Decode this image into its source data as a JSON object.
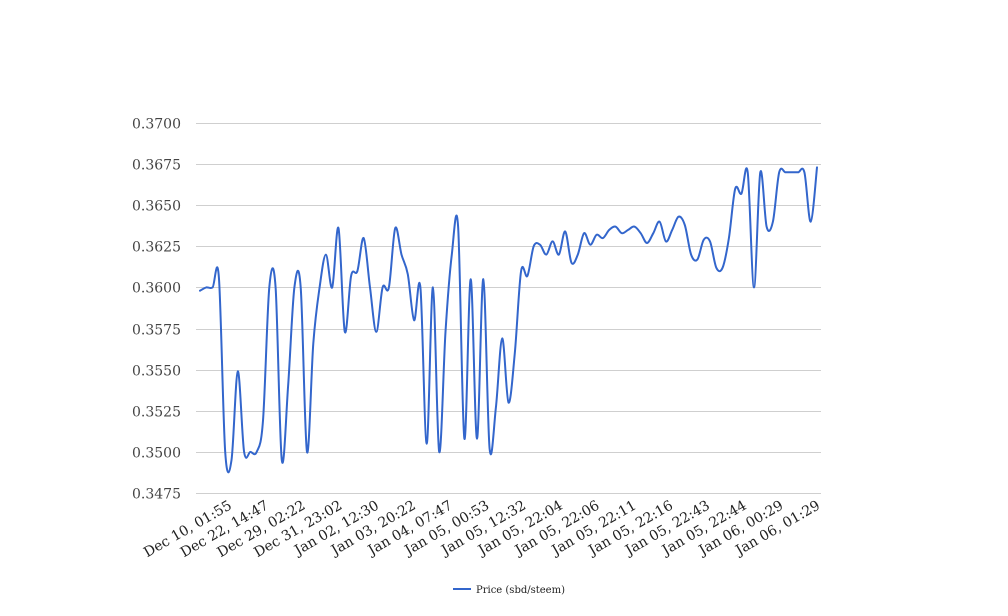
{
  "chart_data": {
    "type": "line",
    "title": "",
    "xlabel": "",
    "ylabel": "",
    "grid": true,
    "legend_position": "bottom",
    "ylim": [
      0.3475,
      0.37
    ],
    "y_ticks": [
      "0.3475",
      "0.3500",
      "0.3525",
      "0.3550",
      "0.3575",
      "0.3600",
      "0.3625",
      "0.3650",
      "0.3675",
      "0.3700"
    ],
    "x_tick_labels": [
      "Dec 10, 01:55",
      "Dec 22, 14:47",
      "Dec 29, 02:22",
      "Dec 31, 23:02",
      "Jan 02, 12:30",
      "Jan 03, 20:22",
      "Jan 04, 07:47",
      "Jan 05, 00:53",
      "Jan 05, 12:32",
      "Jan 05, 22:04",
      "Jan 05, 22:06",
      "Jan 05, 22:11",
      "Jan 05, 22:16",
      "Jan 05, 22:43",
      "Jan 05, 22:44",
      "Jan 06, 00:29",
      "Jan 06, 01:29"
    ],
    "series": [
      {
        "name": "Price (sbd/steem)",
        "color": "#3366cc",
        "values": [
          0.3598,
          0.36,
          0.36,
          0.3606,
          0.35,
          0.3495,
          0.3549,
          0.35,
          0.35,
          0.35,
          0.3519,
          0.36,
          0.36,
          0.3495,
          0.354,
          0.36,
          0.36,
          0.35,
          0.3566,
          0.36,
          0.362,
          0.36,
          0.3636,
          0.3573,
          0.3607,
          0.361,
          0.363,
          0.36,
          0.3573,
          0.36,
          0.36,
          0.3636,
          0.362,
          0.3608,
          0.358,
          0.36,
          0.3505,
          0.36,
          0.35,
          0.3573,
          0.362,
          0.3637,
          0.3508,
          0.3605,
          0.3508,
          0.3605,
          0.3502,
          0.3527,
          0.3569,
          0.353,
          0.356,
          0.361,
          0.3607,
          0.3625,
          0.3626,
          0.362,
          0.3628,
          0.362,
          0.3634,
          0.3615,
          0.362,
          0.3633,
          0.3626,
          0.3632,
          0.363,
          0.3635,
          0.3637,
          0.3633,
          0.3635,
          0.3637,
          0.3633,
          0.3627,
          0.3633,
          0.364,
          0.3628,
          0.3635,
          0.3643,
          0.3638,
          0.362,
          0.3617,
          0.3629,
          0.3628,
          0.3612,
          0.3612,
          0.363,
          0.366,
          0.3657,
          0.367,
          0.36,
          0.367,
          0.3637,
          0.364,
          0.367,
          0.367,
          0.367,
          0.367,
          0.367,
          0.364,
          0.3673
        ]
      }
    ]
  }
}
